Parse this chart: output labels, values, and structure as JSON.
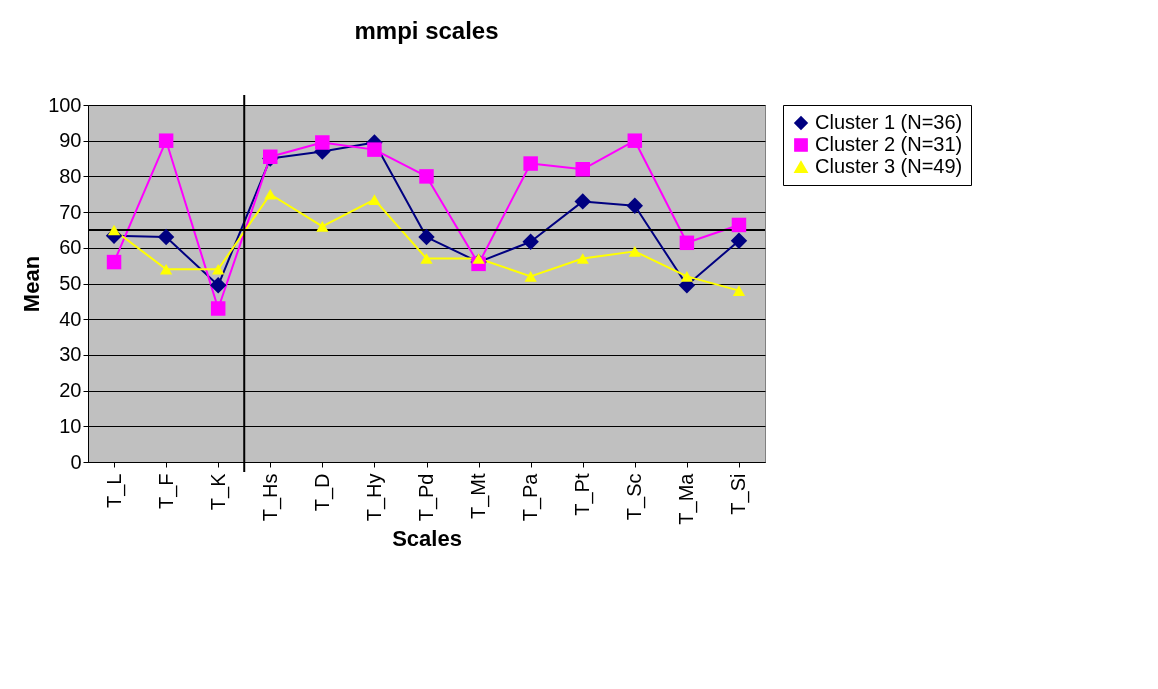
{
  "chart_data": {
    "type": "line",
    "title": "mmpi scales",
    "xlabel": "Scales",
    "ylabel": "Mean",
    "categories": [
      "T_L",
      "T_F",
      "T_K",
      "T_Hs",
      "T_D",
      "T_Hy",
      "T_Pd",
      "T_Mt",
      "T_Pa",
      "T_Pt",
      "T_Sc",
      "T_Ma",
      "T_Si"
    ],
    "series": [
      {
        "name": "Cluster 1 (N=36)",
        "color": "#000080",
        "marker": "diamond",
        "values": [
          63.4,
          63,
          49.5,
          85,
          87,
          89.5,
          63,
          56,
          61.7,
          73,
          71.8,
          49.5,
          62
        ]
      },
      {
        "name": "Cluster 2 (N=31)",
        "color": "#ff00ff",
        "marker": "square",
        "values": [
          56,
          90,
          43,
          85.5,
          89.5,
          87.5,
          80,
          55.5,
          83.6,
          82,
          90,
          61.4,
          66.4
        ]
      },
      {
        "name": "Cluster 3 (N=49)",
        "color": "#ffff00",
        "marker": "triangle",
        "values": [
          65,
          54,
          54,
          75,
          66,
          73.5,
          57,
          57,
          52,
          57,
          59,
          52,
          48
        ]
      }
    ],
    "ylim": [
      0,
      100
    ],
    "yticks": [
      0,
      10,
      20,
      30,
      40,
      50,
      60,
      70,
      80,
      90,
      100
    ],
    "ref_lines": [
      {
        "axis": "y",
        "value": 65,
        "color": "#000000"
      },
      {
        "axis": "x",
        "value": "T_Hs",
        "color": "#000000"
      }
    ],
    "grid": "y",
    "legend": "right",
    "line_style": "solid"
  }
}
